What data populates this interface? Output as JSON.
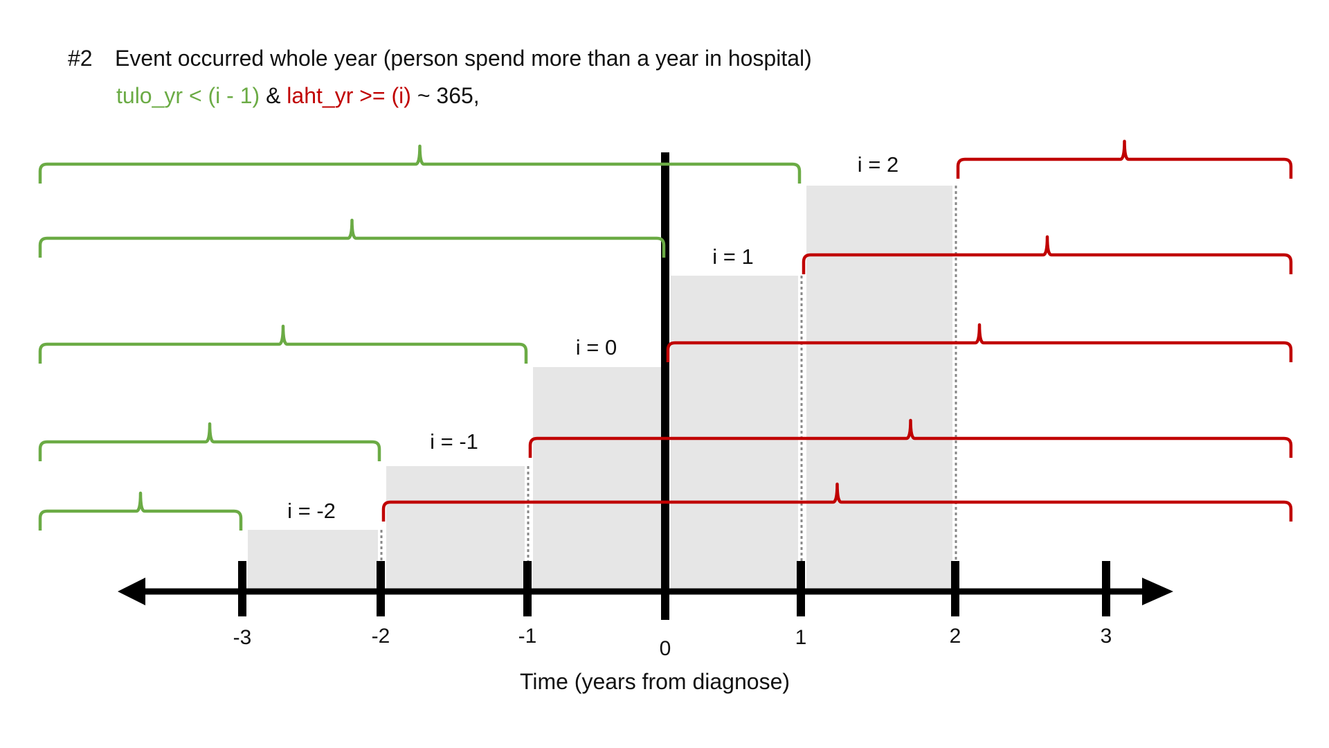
{
  "header": {
    "number": "#2",
    "title": "Event occurred whole year (person spend more than a year in hospital)",
    "formula": {
      "part1": "tulo_yr < (i - 1)",
      "part2": " & ",
      "part3": "laht_yr >= (i)",
      "part4": " ~ 365,"
    }
  },
  "colors": {
    "green": "#6bab45",
    "red": "#c00000",
    "bar": "#e6e6e6",
    "axis": "#000000"
  },
  "diagram": {
    "axis_label": "Time (years from diagnose)",
    "ticks": [
      {
        "value": -3,
        "label": "-3"
      },
      {
        "value": -2,
        "label": "-2"
      },
      {
        "value": -1,
        "label": "-1"
      },
      {
        "value": 0,
        "label": "0"
      },
      {
        "value": 1,
        "label": "1"
      },
      {
        "value": 2,
        "label": "2"
      },
      {
        "value": 3,
        "label": "3"
      }
    ],
    "steps": [
      {
        "i": -2,
        "label": "i = -2",
        "from": -3,
        "to": -2
      },
      {
        "i": -1,
        "label": "i = -1",
        "from": -2,
        "to": -1
      },
      {
        "i": 0,
        "label": "i = 0",
        "from": -1,
        "to": 0
      },
      {
        "i": 1,
        "label": "i = 1",
        "from": 0,
        "to": 1
      },
      {
        "i": 2,
        "label": "i = 2",
        "from": 1,
        "to": 2
      }
    ]
  }
}
